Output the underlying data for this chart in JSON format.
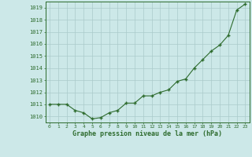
{
  "x": [
    0,
    1,
    2,
    3,
    4,
    5,
    6,
    7,
    8,
    9,
    10,
    11,
    12,
    13,
    14,
    15,
    16,
    17,
    18,
    19,
    20,
    21,
    22,
    23
  ],
  "y": [
    1011.0,
    1011.0,
    1011.0,
    1010.5,
    1010.3,
    1009.8,
    1009.9,
    1010.3,
    1010.5,
    1011.1,
    1011.1,
    1011.7,
    1011.7,
    1012.0,
    1012.2,
    1012.9,
    1013.1,
    1014.0,
    1014.7,
    1015.4,
    1015.9,
    1016.7,
    1018.8,
    1019.3
  ],
  "line_color": "#2d6b2d",
  "marker": "P",
  "marker_size": 2.5,
  "bg_color": "#cce8e8",
  "grid_color": "#aacaca",
  "xlabel": "Graphe pression niveau de la mer (hPa)",
  "xlabel_color": "#2d6b2d",
  "tick_color": "#2d6b2d",
  "ylim": [
    1009.5,
    1019.5
  ],
  "yticks": [
    1010,
    1011,
    1012,
    1013,
    1014,
    1015,
    1016,
    1017,
    1018,
    1019
  ],
  "xticks": [
    0,
    1,
    2,
    3,
    4,
    5,
    6,
    7,
    8,
    9,
    10,
    11,
    12,
    13,
    14,
    15,
    16,
    17,
    18,
    19,
    20,
    21,
    22,
    23
  ],
  "xlim": [
    -0.5,
    23.5
  ]
}
